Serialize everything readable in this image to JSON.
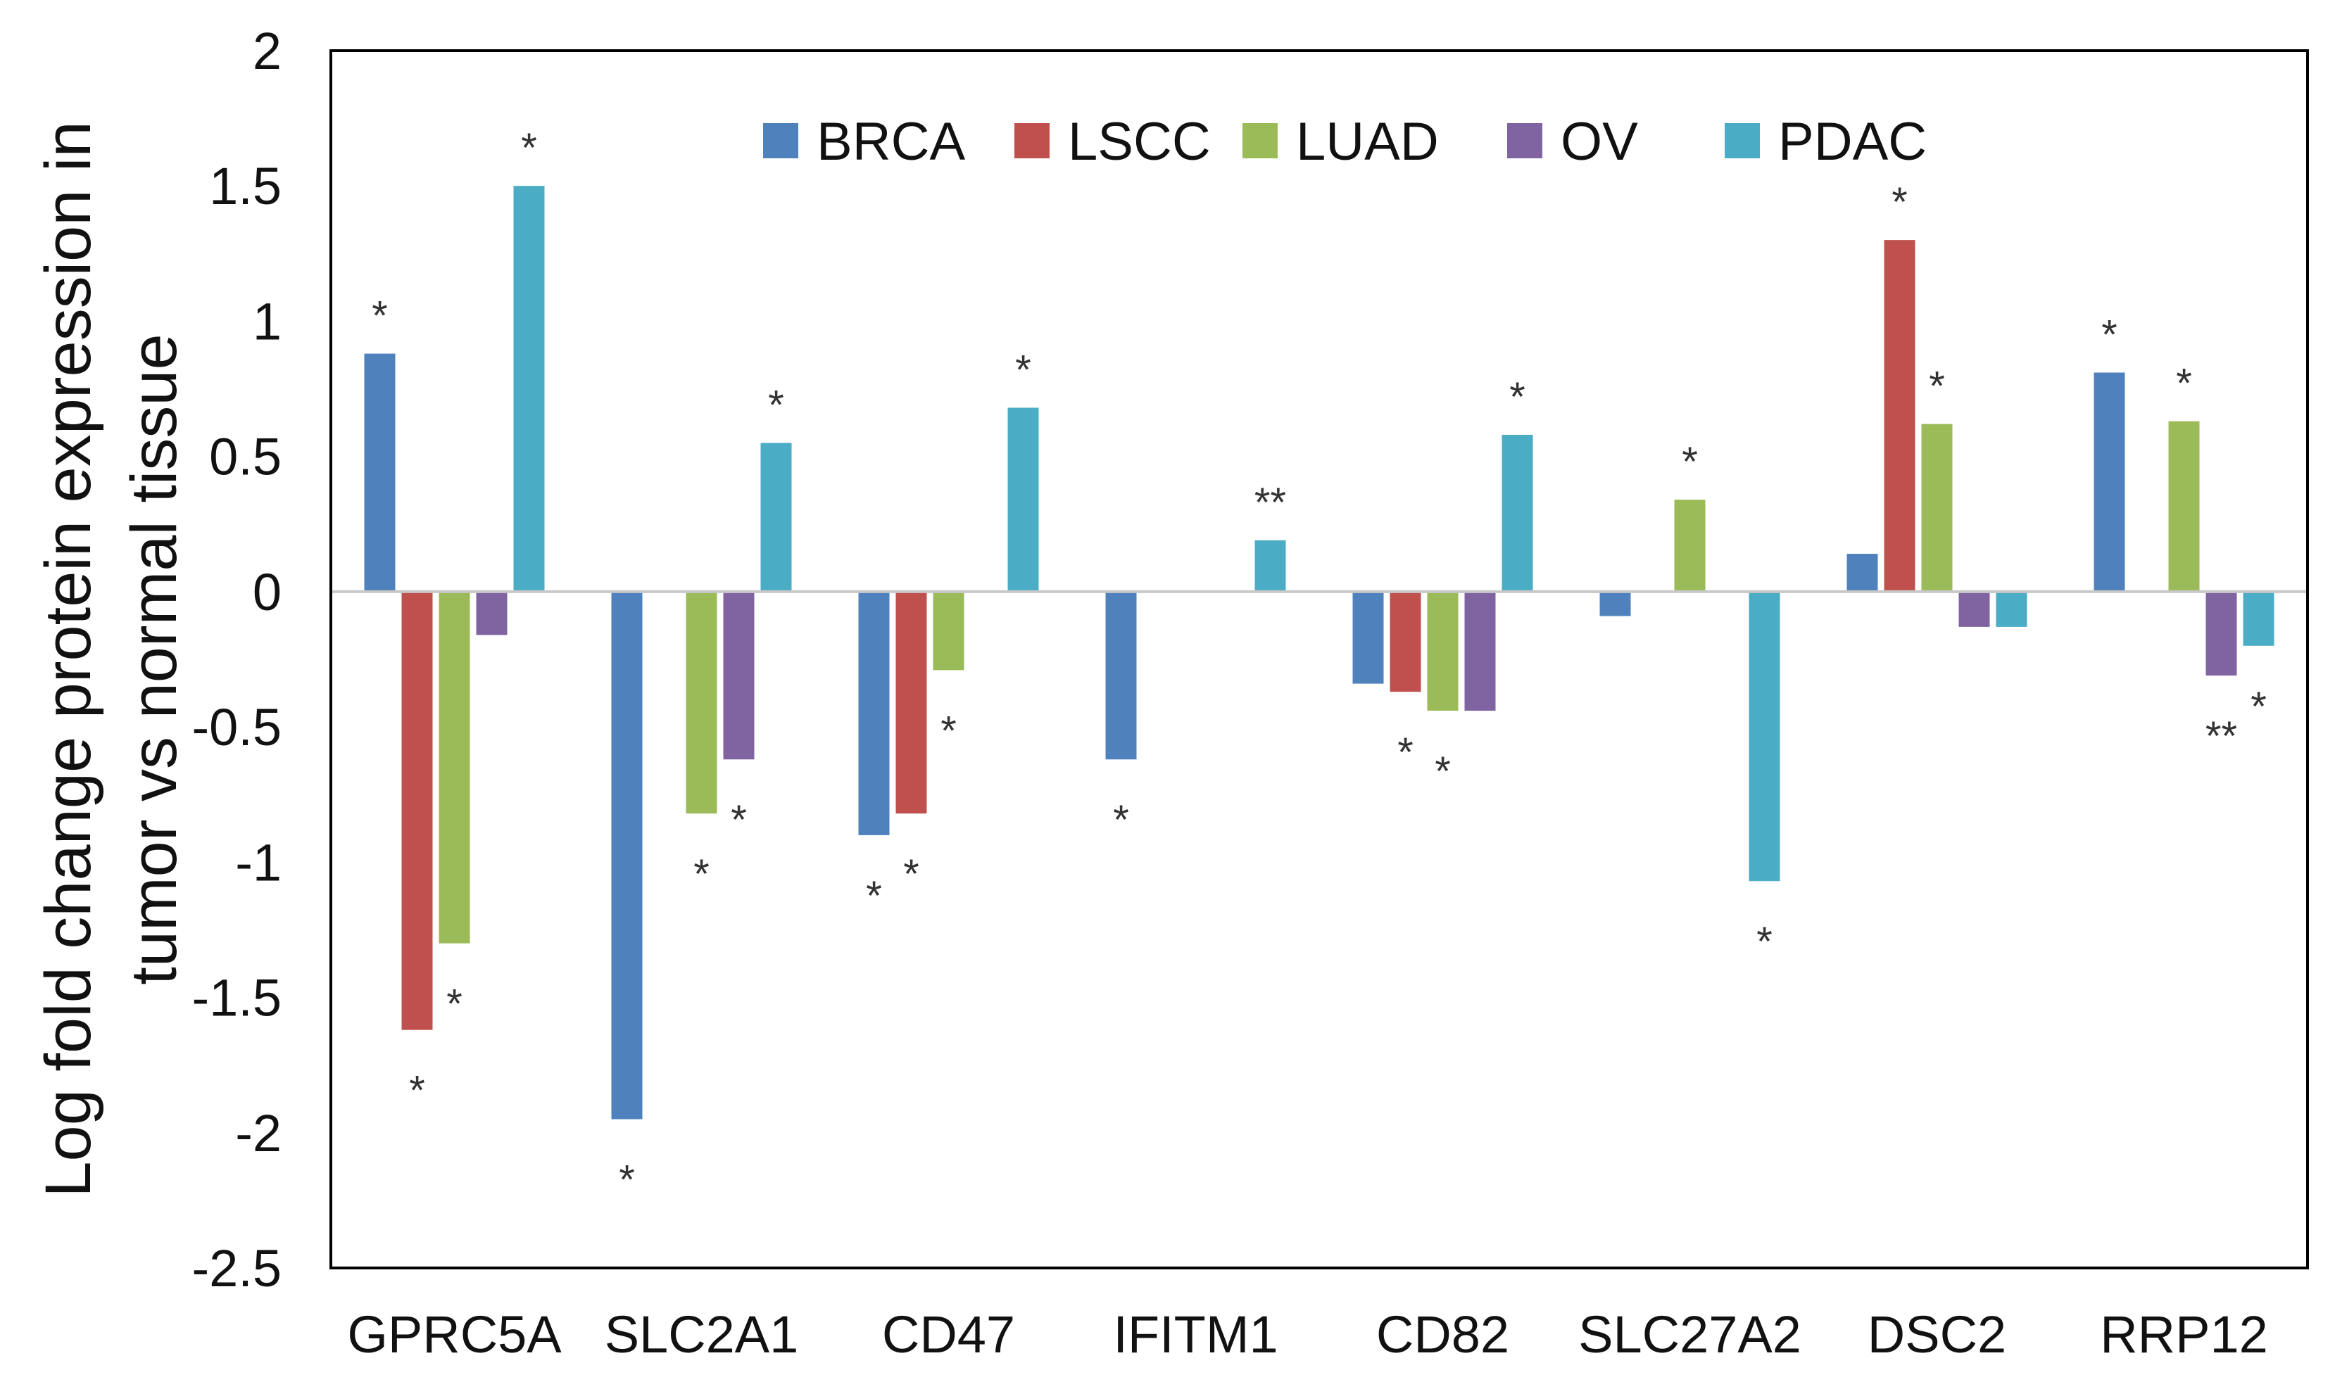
{
  "chart_data": {
    "type": "bar",
    "title": "",
    "xlabel": "",
    "ylabel": "Log fold change protein expression in tumor vs normal tissue",
    "ylabel_lines": [
      "Log fold change protein expression in",
      "tumor vs normal tissue"
    ],
    "ylim": [
      -2.5,
      2
    ],
    "yticks": [
      2,
      1.5,
      1,
      0.5,
      0,
      -0.5,
      -1,
      -1.5,
      -2,
      -2.5
    ],
    "ytick_labels": [
      "2",
      "1.5",
      "1",
      "0.5",
      "0",
      "-0.5",
      "-1",
      "-1.5",
      "-2",
      "-2.5"
    ],
    "grid": false,
    "legend_position": "top",
    "categories": [
      "GPRC5A",
      "SLC2A1",
      "CD47",
      "IFITM1",
      "CD82",
      "SLC27A2",
      "DSC2",
      "RRP12"
    ],
    "series": [
      {
        "name": "BRCA",
        "color": "#4F81BD",
        "values": [
          0.88,
          -1.95,
          -0.9,
          -0.62,
          -0.34,
          -0.09,
          0.14,
          0.81
        ]
      },
      {
        "name": "LSCC",
        "color": "#C0504D",
        "values": [
          -1.62,
          null,
          -0.82,
          null,
          -0.37,
          null,
          1.3,
          null
        ]
      },
      {
        "name": "LUAD",
        "color": "#9BBB59",
        "values": [
          -1.3,
          -0.82,
          -0.29,
          null,
          -0.44,
          0.34,
          0.62,
          0.63
        ]
      },
      {
        "name": "OV",
        "color": "#8064A2",
        "values": [
          -0.16,
          -0.62,
          null,
          null,
          -0.44,
          null,
          -0.13,
          -0.31
        ]
      },
      {
        "name": "PDAC",
        "color": "#4BACC6",
        "values": [
          1.5,
          0.55,
          0.68,
          0.19,
          0.58,
          -1.07,
          -0.13,
          -0.2
        ]
      }
    ],
    "annotations": [
      {
        "text": "*",
        "category": "GPRC5A",
        "series": "BRCA"
      },
      {
        "text": "*",
        "category": "GPRC5A",
        "series": "LSCC"
      },
      {
        "text": "*",
        "category": "GPRC5A",
        "series": "LUAD"
      },
      {
        "text": "*",
        "category": "GPRC5A",
        "series": "PDAC"
      },
      {
        "text": "*",
        "category": "SLC2A1",
        "series": "BRCA"
      },
      {
        "text": "*",
        "category": "SLC2A1",
        "series": "LUAD"
      },
      {
        "text": "*",
        "category": "SLC2A1",
        "series": "OV"
      },
      {
        "text": "*",
        "category": "SLC2A1",
        "series": "PDAC"
      },
      {
        "text": "*",
        "category": "CD47",
        "series": "BRCA"
      },
      {
        "text": "*",
        "category": "CD47",
        "series": "LSCC"
      },
      {
        "text": "*",
        "category": "CD47",
        "series": "LUAD"
      },
      {
        "text": "*",
        "category": "CD47",
        "series": "PDAC"
      },
      {
        "text": "*",
        "category": "IFITM1",
        "series": "BRCA"
      },
      {
        "text": "**",
        "category": "IFITM1",
        "series": "PDAC"
      },
      {
        "text": "*",
        "category": "CD82",
        "series": "LSCC"
      },
      {
        "text": "*",
        "category": "CD82",
        "series": "LUAD"
      },
      {
        "text": "*",
        "category": "CD82",
        "series": "PDAC"
      },
      {
        "text": "*",
        "category": "SLC27A2",
        "series": "LUAD"
      },
      {
        "text": "*",
        "category": "SLC27A2",
        "series": "PDAC"
      },
      {
        "text": "*",
        "category": "DSC2",
        "series": "LSCC"
      },
      {
        "text": "*",
        "category": "DSC2",
        "series": "LUAD"
      },
      {
        "text": "*",
        "category": "RRP12",
        "series": "BRCA"
      },
      {
        "text": "*",
        "category": "RRP12",
        "series": "LUAD"
      },
      {
        "text": "**",
        "category": "RRP12",
        "series": "OV"
      },
      {
        "text": "*",
        "category": "RRP12",
        "series": "PDAC"
      }
    ]
  }
}
